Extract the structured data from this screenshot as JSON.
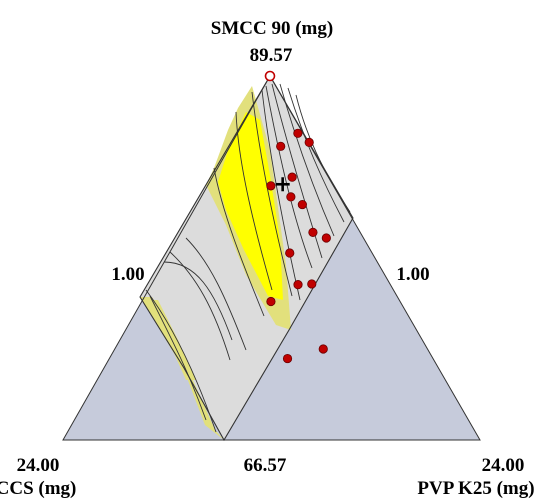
{
  "chart_data": {
    "type": "ternary-contour",
    "axes": {
      "top": {
        "title": "SMCC 90 (mg)",
        "apex_value": "89.57"
      },
      "bottom_left": {
        "title": "CCS (mg)",
        "apex_value": "24.00"
      },
      "bottom_right": {
        "title": "PVP K25 (mg)",
        "apex_value": "24.00"
      },
      "left_edge_value": "1.00",
      "right_edge_value": "1.00",
      "bottom_edge_value": "66.57"
    },
    "regions": [
      {
        "name": "infeasible",
        "color": "#c6cbdb"
      },
      {
        "name": "design-space",
        "color": "#ffff00"
      },
      {
        "name": "margin",
        "color": "#e2e07c"
      },
      {
        "name": "feasible",
        "color": "#dcdcdc"
      }
    ],
    "design_points_color": "#c00000",
    "design_points": [
      {
        "smcc": 89.57,
        "ccs": 1.0,
        "pvp": 1.0,
        "style": "open"
      },
      {
        "smcc": 82.9,
        "ccs": 1.57,
        "pvp": 7.1
      },
      {
        "smcc": 84.0,
        "ccs": 4.3,
        "pvp": 3.3
      },
      {
        "smcc": 82.6,
        "ccs": 7.9,
        "pvp": 1.1
      },
      {
        "smcc": 80.8,
        "ccs": 5.0,
        "pvp": 5.8
      },
      {
        "smcc": 81.1,
        "ccs": 0.9,
        "pvp": 9.6
      },
      {
        "smcc": 79.7,
        "ccs": 6.4,
        "pvp": 5.5
      },
      {
        "smcc": 77.9,
        "ccs": 5.6,
        "pvp": 8.0
      },
      {
        "smcc": 76.3,
        "ccs": 10.1,
        "pvp": 5.2
      },
      {
        "smcc": 76.7,
        "ccs": 17.5,
        "pvp": 1.0
      },
      {
        "smcc": 75.0,
        "ccs": 6.2,
        "pvp": 10.3
      },
      {
        "smcc": 73.2,
        "ccs": 5.1,
        "pvp": 13.3
      },
      {
        "smcc": 73.4,
        "ccs": 11.2,
        "pvp": 7.0
      },
      {
        "smcc": 71.9,
        "ccs": 9.6,
        "pvp": 10.0
      },
      {
        "smcc": 69.9,
        "ccs": 17.0,
        "pvp": 4.6
      },
      {
        "smcc": 66.57,
        "ccs": 12.0,
        "pvp": 12.0
      }
    ],
    "marker": {
      "symbol": "+",
      "smcc": 81.4,
      "ccs": 6.5,
      "pvp": 3.7
    }
  }
}
